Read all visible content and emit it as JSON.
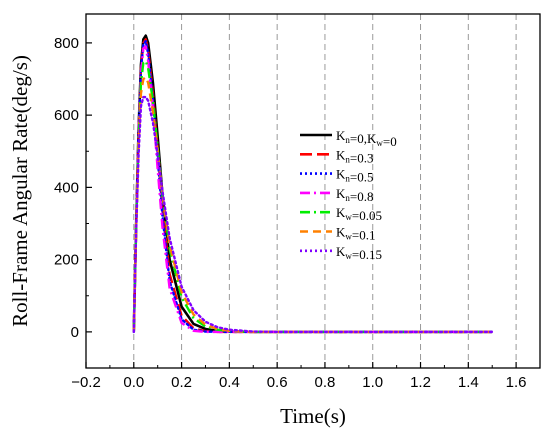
{
  "chart_data": {
    "type": "line",
    "title": "",
    "xlabel": "Time(s)",
    "ylabel": "Roll-Frame Angular Rate(deg/s)",
    "xlim": [
      -0.2,
      1.7
    ],
    "ylim": [
      -100,
      880
    ],
    "x_ticks": [
      "-0.2",
      "0.0",
      "0.2",
      "0.4",
      "0.6",
      "0.8",
      "1.0",
      "1.2",
      "1.4",
      "1.6"
    ],
    "y_ticks": [
      "0",
      "200",
      "400",
      "600",
      "800"
    ],
    "grid": "vertical dashed",
    "legend_position": "center-right",
    "series": [
      {
        "name": "K_n=0,K_w=0",
        "label_parts": [
          [
            "K",
            "n"
          ],
          [
            "=0,",
            ""
          ],
          [
            "K",
            "w"
          ],
          [
            "=0",
            ""
          ]
        ],
        "color": "#000000",
        "dash": "solid",
        "x": [
          0,
          0.01,
          0.02,
          0.03,
          0.04,
          0.05,
          0.06,
          0.08,
          0.1,
          0.12,
          0.15,
          0.2,
          0.25,
          0.3,
          0.35,
          0.4,
          0.5,
          0.6,
          0.8,
          1.0,
          1.2,
          1.5
        ],
        "y": [
          0,
          300,
          560,
          740,
          810,
          820,
          800,
          690,
          540,
          380,
          200,
          70,
          22,
          8,
          3,
          1,
          0,
          0,
          0,
          0,
          0,
          0
        ]
      },
      {
        "name": "K_n=0.3",
        "label_parts": [
          [
            "K",
            "n"
          ],
          [
            "=0.3",
            ""
          ]
        ],
        "color": "#ff0000",
        "dash": "longdash",
        "x": [
          0,
          0.01,
          0.02,
          0.03,
          0.04,
          0.05,
          0.06,
          0.08,
          0.1,
          0.12,
          0.15,
          0.2,
          0.25,
          0.3,
          0.35,
          0.4,
          0.5,
          0.6,
          0.8,
          1.0,
          1.2,
          1.5
        ],
        "y": [
          0,
          300,
          560,
          730,
          800,
          810,
          780,
          660,
          500,
          340,
          160,
          45,
          10,
          2,
          0,
          0,
          0,
          0,
          0,
          0,
          0,
          0
        ]
      },
      {
        "name": "K_n=0.5",
        "label_parts": [
          [
            "K",
            "n"
          ],
          [
            "=0.5",
            ""
          ]
        ],
        "color": "#0000ff",
        "dash": "dot",
        "x": [
          0,
          0.01,
          0.02,
          0.03,
          0.04,
          0.05,
          0.06,
          0.08,
          0.1,
          0.12,
          0.15,
          0.2,
          0.25,
          0.3,
          0.35,
          0.4,
          0.5,
          0.6,
          0.8,
          1.0,
          1.2,
          1.5
        ],
        "y": [
          0,
          300,
          555,
          725,
          795,
          805,
          770,
          645,
          480,
          320,
          140,
          35,
          6,
          1,
          0,
          0,
          0,
          0,
          0,
          0,
          0,
          0
        ]
      },
      {
        "name": "K_n=0.8",
        "label_parts": [
          [
            "K",
            "n"
          ],
          [
            "=0.8",
            ""
          ]
        ],
        "color": "#ff00ff",
        "dash": "dashdot",
        "x": [
          0,
          0.01,
          0.02,
          0.03,
          0.04,
          0.05,
          0.06,
          0.08,
          0.1,
          0.12,
          0.15,
          0.2,
          0.25,
          0.3,
          0.35,
          0.4,
          0.5,
          0.6,
          0.8,
          1.0,
          1.2,
          1.5
        ],
        "y": [
          0,
          300,
          550,
          715,
          785,
          790,
          750,
          620,
          450,
          290,
          120,
          25,
          3,
          0,
          0,
          0,
          0,
          0,
          0,
          0,
          0,
          0
        ]
      },
      {
        "name": "K_w=0.05",
        "label_parts": [
          [
            "K",
            "w"
          ],
          [
            "=0.05",
            ""
          ]
        ],
        "color": "#00ee00",
        "dash": "dashdot",
        "x": [
          0,
          0.01,
          0.02,
          0.03,
          0.04,
          0.05,
          0.06,
          0.08,
          0.1,
          0.12,
          0.15,
          0.2,
          0.25,
          0.3,
          0.35,
          0.4,
          0.5,
          0.6,
          0.8,
          1.0,
          1.2,
          1.5
        ],
        "y": [
          0,
          290,
          530,
          690,
          745,
          750,
          730,
          640,
          510,
          380,
          230,
          95,
          38,
          15,
          6,
          2,
          0,
          0,
          0,
          0,
          0,
          0
        ]
      },
      {
        "name": "K_w=0.1",
        "label_parts": [
          [
            "K",
            "w"
          ],
          [
            "=0.1",
            ""
          ]
        ],
        "color": "#ff8000",
        "dash": "dash",
        "x": [
          0,
          0.01,
          0.02,
          0.03,
          0.04,
          0.05,
          0.06,
          0.08,
          0.1,
          0.12,
          0.15,
          0.2,
          0.25,
          0.3,
          0.35,
          0.4,
          0.5,
          0.6,
          0.8,
          1.0,
          1.2,
          1.5
        ],
        "y": [
          0,
          285,
          510,
          660,
          700,
          705,
          690,
          610,
          500,
          380,
          240,
          110,
          48,
          20,
          8,
          3,
          0,
          0,
          0,
          0,
          0,
          0
        ]
      },
      {
        "name": "K_w=0.15",
        "label_parts": [
          [
            "K",
            "w"
          ],
          [
            "=0.15",
            ""
          ]
        ],
        "color": "#8000ff",
        "dash": "dot",
        "x": [
          0,
          0.01,
          0.02,
          0.03,
          0.04,
          0.05,
          0.06,
          0.08,
          0.1,
          0.12,
          0.15,
          0.2,
          0.25,
          0.3,
          0.35,
          0.4,
          0.5,
          0.6,
          0.8,
          1.0,
          1.2,
          1.5
        ],
        "y": [
          0,
          280,
          490,
          625,
          650,
          650,
          640,
          580,
          490,
          390,
          260,
          125,
          60,
          28,
          13,
          6,
          1,
          0,
          0,
          0,
          0,
          0
        ]
      }
    ]
  }
}
